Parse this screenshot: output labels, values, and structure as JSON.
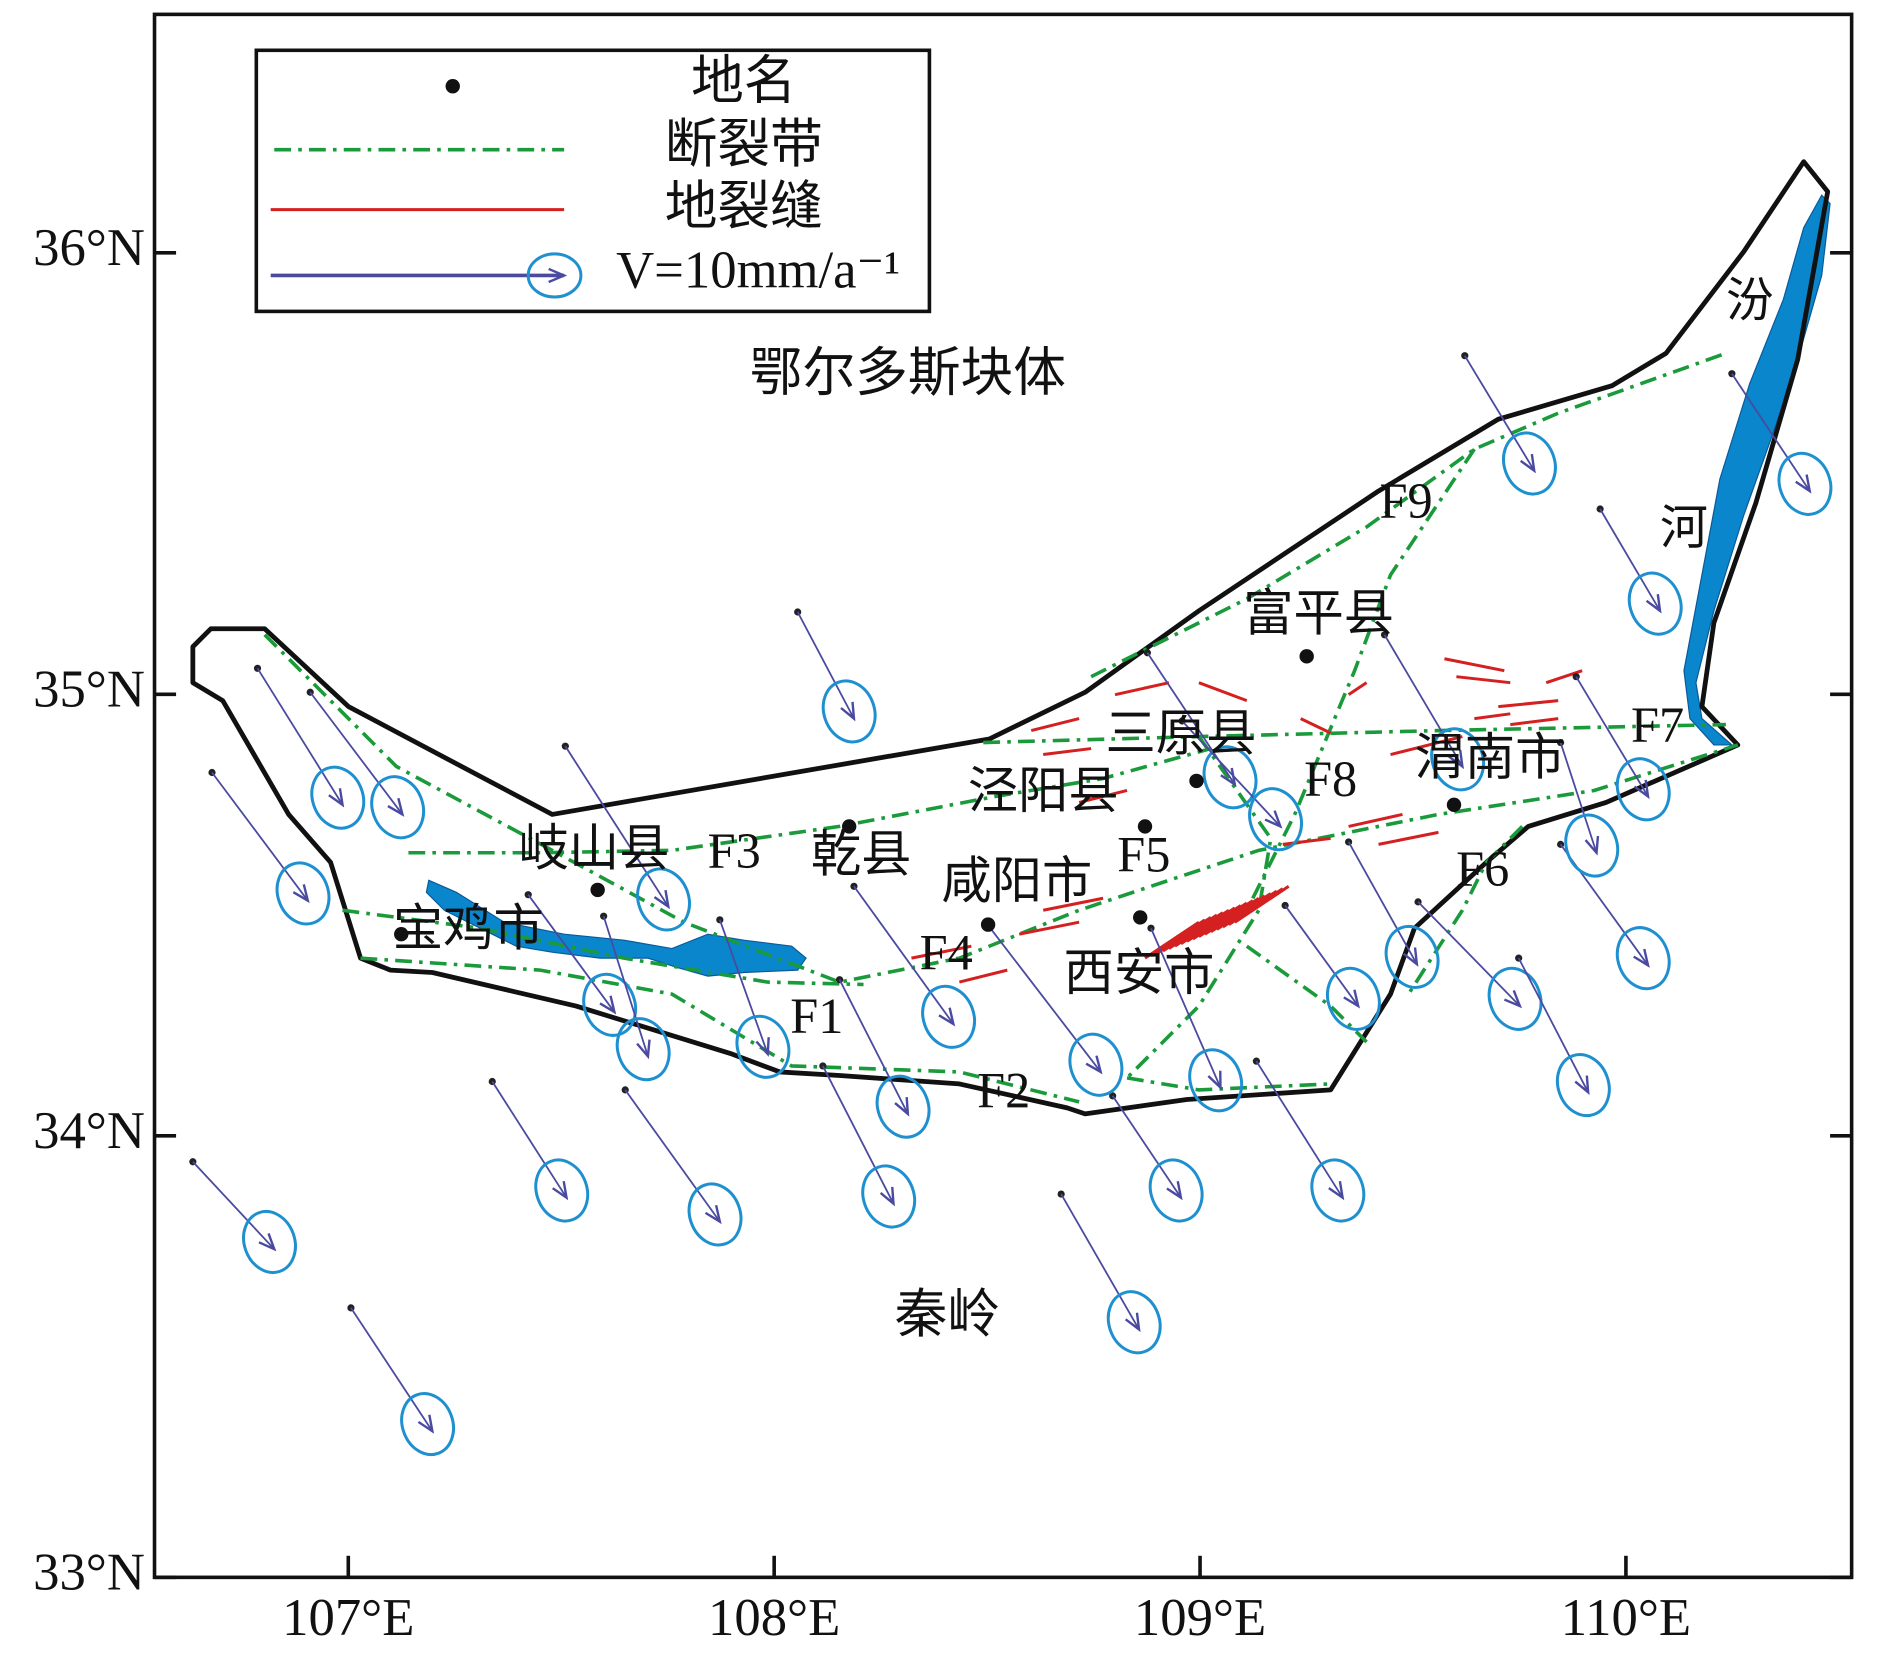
{
  "map": {
    "xlim": [
      106.545,
      110.53
    ],
    "ylim": [
      33,
      36.54
    ],
    "xticks": [
      {
        "value": 107,
        "label": "107°E"
      },
      {
        "value": 108,
        "label": "108°E"
      },
      {
        "value": 109,
        "label": "109°E"
      },
      {
        "value": 110,
        "label": "110°E"
      }
    ],
    "yticks": [
      {
        "value": 33,
        "label": "33°N"
      },
      {
        "value": 34,
        "label": "34°N"
      },
      {
        "value": 35,
        "label": "35°N"
      },
      {
        "value": 36,
        "label": "36°N"
      }
    ],
    "legend": {
      "entries": [
        "地名",
        "断裂带",
        "地裂缝",
        "V=10mm/a⁻¹"
      ]
    },
    "regions": [
      "鄂尔多斯块体",
      "秦岭",
      "汾",
      "河"
    ],
    "places": [
      "宝鸡市",
      "岐山县",
      "乾县",
      "咸阳市",
      "泾阳县",
      "三原县",
      "富平县",
      "渭南市",
      "西安市"
    ],
    "faults": [
      "F1",
      "F2",
      "F3",
      "F4",
      "F5",
      "F6",
      "F7",
      "F8",
      "F9"
    ]
  }
}
